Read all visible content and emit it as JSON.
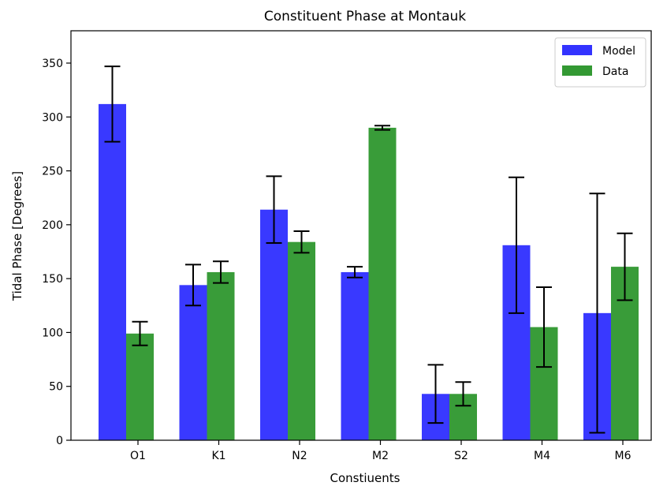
{
  "chart_data": {
    "type": "bar",
    "title": "Constituent Phase at Montauk",
    "xlabel": "Constiuents",
    "ylabel": "Tidal Phase [Degrees]",
    "categories": [
      "O1",
      "K1",
      "N2",
      "M2",
      "S2",
      "M4",
      "M6"
    ],
    "ylim": [
      0,
      380
    ],
    "yticks": [
      0,
      50,
      100,
      150,
      200,
      250,
      300,
      350
    ],
    "grid": false,
    "legend_position": "top-right",
    "series": [
      {
        "name": "Model",
        "color": "#3333ff",
        "values": [
          312,
          144,
          214,
          156,
          43,
          181,
          118
        ],
        "errors": [
          35,
          19,
          31,
          5,
          27,
          63,
          111
        ]
      },
      {
        "name": "Data",
        "color": "#339933",
        "values": [
          99,
          156,
          184,
          290,
          43,
          105,
          161
        ],
        "errors": [
          11,
          10,
          10,
          2,
          11,
          37,
          31
        ]
      }
    ]
  }
}
